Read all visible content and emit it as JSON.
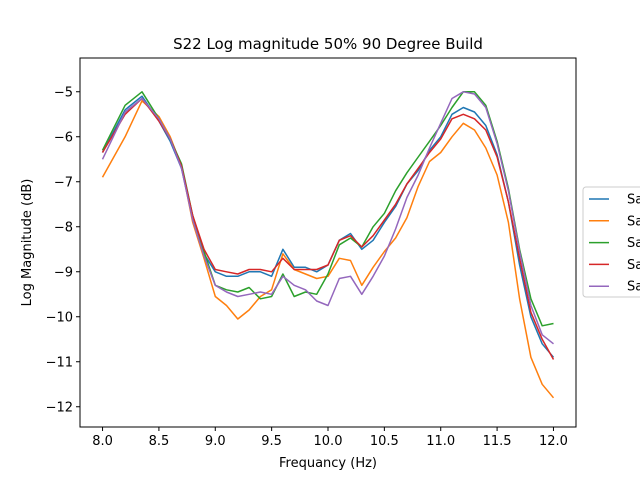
{
  "chart_data": {
    "type": "line",
    "title": "S22 Log magnitude 50% 90 Degree Build",
    "xlabel": "Frequancy (Hz)",
    "ylabel": "Log Magnitude (dB)",
    "xlim": [
      7.8,
      12.2
    ],
    "ylim": [
      -12.45,
      -4.25
    ],
    "xticks": [
      8.0,
      8.5,
      9.0,
      9.5,
      10.0,
      10.5,
      11.0,
      11.5,
      12.0
    ],
    "xtick_labels": [
      "8.0",
      "8.5",
      "9.0",
      "9.5",
      "10.0",
      "10.5",
      "11.0",
      "11.5",
      "12.0"
    ],
    "yticks": [
      -12,
      -11,
      -10,
      -9,
      -8,
      -7,
      -6,
      -5
    ],
    "ytick_labels": [
      "−12",
      "−11",
      "−10",
      "−9",
      "−8",
      "−7",
      "−6",
      "−5"
    ],
    "grid": false,
    "legend_position": "right, partially cut off",
    "x": [
      8.0,
      8.2,
      8.35,
      8.5,
      8.6,
      8.7,
      8.8,
      8.9,
      9.0,
      9.1,
      9.2,
      9.3,
      9.4,
      9.5,
      9.6,
      9.7,
      9.8,
      9.9,
      10.0,
      10.1,
      10.2,
      10.3,
      10.4,
      10.5,
      10.6,
      10.7,
      10.8,
      10.9,
      11.0,
      11.1,
      11.2,
      11.3,
      11.4,
      11.5,
      11.6,
      11.7,
      11.8,
      11.9,
      12.0
    ],
    "series": [
      {
        "name": "Sa",
        "color": "#1f77b4",
        "values": [
          -6.35,
          -5.4,
          -5.1,
          -5.65,
          -6.1,
          -6.7,
          -7.8,
          -8.6,
          -9.0,
          -9.1,
          -9.1,
          -9.0,
          -9.0,
          -9.1,
          -8.5,
          -8.9,
          -8.9,
          -9.0,
          -8.85,
          -8.3,
          -8.15,
          -8.5,
          -8.3,
          -7.9,
          -7.55,
          -7.05,
          -6.75,
          -6.3,
          -6.0,
          -5.5,
          -5.35,
          -5.45,
          -5.75,
          -6.4,
          -7.45,
          -8.85,
          -10.0,
          -10.6,
          -10.9
        ]
      },
      {
        "name": "Sa",
        "color": "#ff7f0e",
        "values": [
          -6.9,
          -6.0,
          -5.2,
          -5.55,
          -6.0,
          -6.65,
          -7.9,
          -8.7,
          -9.55,
          -9.75,
          -10.05,
          -9.85,
          -9.55,
          -9.4,
          -8.6,
          -8.95,
          -9.05,
          -9.15,
          -9.1,
          -8.7,
          -8.75,
          -9.3,
          -8.9,
          -8.55,
          -8.25,
          -7.8,
          -7.1,
          -6.55,
          -6.35,
          -6.0,
          -5.7,
          -5.85,
          -6.25,
          -6.85,
          -7.9,
          -9.6,
          -10.9,
          -11.5,
          -11.8
        ]
      },
      {
        "name": "Sa",
        "color": "#2ca02c",
        "values": [
          -6.3,
          -5.3,
          -5.0,
          -5.6,
          -6.05,
          -6.6,
          -7.75,
          -8.55,
          -9.3,
          -9.4,
          -9.45,
          -9.35,
          -9.6,
          -9.55,
          -9.05,
          -9.55,
          -9.45,
          -9.5,
          -9.05,
          -8.4,
          -8.25,
          -8.45,
          -8.0,
          -7.7,
          -7.2,
          -6.8,
          -6.45,
          -6.1,
          -5.75,
          -5.35,
          -5.0,
          -5.0,
          -5.3,
          -6.1,
          -7.15,
          -8.5,
          -9.6,
          -10.2,
          -10.15
        ]
      },
      {
        "name": "Sa",
        "color": "#d62728",
        "values": [
          -6.35,
          -5.5,
          -5.15,
          -5.65,
          -6.05,
          -6.65,
          -7.75,
          -8.5,
          -8.95,
          -9.0,
          -9.05,
          -8.95,
          -8.95,
          -9.0,
          -8.7,
          -8.95,
          -8.95,
          -8.95,
          -8.85,
          -8.3,
          -8.2,
          -8.45,
          -8.2,
          -7.85,
          -7.5,
          -7.05,
          -6.7,
          -6.35,
          -6.05,
          -5.6,
          -5.5,
          -5.6,
          -5.85,
          -6.45,
          -7.45,
          -8.7,
          -9.9,
          -10.5,
          -10.95
        ]
      },
      {
        "name": "Sa",
        "color": "#9467bd",
        "values": [
          -6.5,
          -5.45,
          -5.15,
          -5.6,
          -6.05,
          -6.7,
          -7.85,
          -8.65,
          -9.3,
          -9.45,
          -9.55,
          -9.5,
          -9.45,
          -9.5,
          -9.1,
          -9.3,
          -9.4,
          -9.65,
          -9.75,
          -9.15,
          -9.1,
          -9.5,
          -9.1,
          -8.65,
          -8.05,
          -7.35,
          -6.85,
          -6.25,
          -5.7,
          -5.15,
          -5.0,
          -5.05,
          -5.35,
          -6.15,
          -7.2,
          -8.55,
          -9.75,
          -10.4,
          -10.6
        ]
      }
    ]
  }
}
